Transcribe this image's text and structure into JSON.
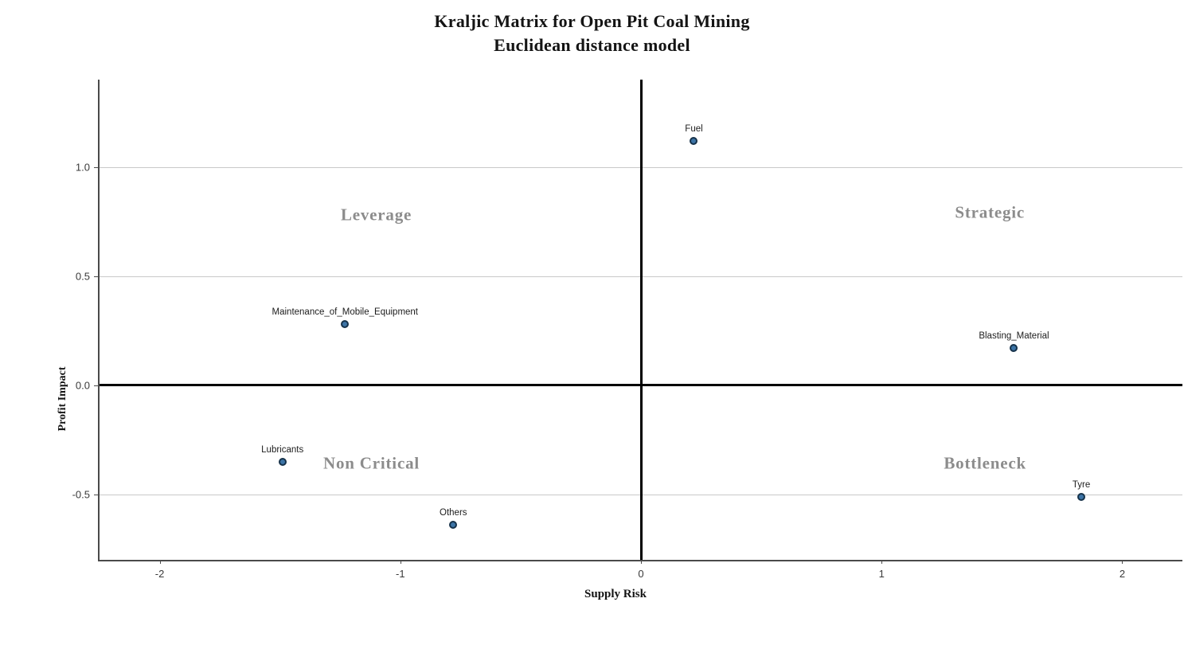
{
  "chart_data": {
    "type": "scatter",
    "title": "Kraljic Matrix for Open Pit Coal Mining",
    "subtitle": "Euclidean distance model",
    "xlabel": "Supply Risk",
    "ylabel": "Profit Impact",
    "xlim": [
      -2.25,
      2.25
    ],
    "ylim": [
      -0.8,
      1.4
    ],
    "x_ticks": [
      {
        "value": -2,
        "label": "-2"
      },
      {
        "value": -1,
        "label": "-1"
      },
      {
        "value": 0,
        "label": "0"
      },
      {
        "value": 1,
        "label": "1"
      },
      {
        "value": 2,
        "label": "2"
      }
    ],
    "y_ticks": [
      {
        "value": 1.0,
        "label": "1.0"
      },
      {
        "value": 0.5,
        "label": "0.5"
      },
      {
        "value": 0.0,
        "label": "0.0"
      },
      {
        "value": -0.5,
        "label": "-0.5"
      }
    ],
    "grid": "horizontal",
    "legend": "none",
    "reference_lines": {
      "x": 0,
      "y": 0
    },
    "points": [
      {
        "label": "Fuel",
        "x": 0.22,
        "y": 1.12
      },
      {
        "label": "Maintenance_of_Mobile_Equipment",
        "x": -1.23,
        "y": 0.28
      },
      {
        "label": "Blasting_Material",
        "x": 1.55,
        "y": 0.17
      },
      {
        "label": "Lubricants",
        "x": -1.49,
        "y": -0.35
      },
      {
        "label": "Others",
        "x": -0.78,
        "y": -0.64
      },
      {
        "label": "Tyre",
        "x": 1.83,
        "y": -0.51
      }
    ],
    "quadrant_labels": [
      {
        "label": "Leverage",
        "x": -1.1,
        "y": 0.78
      },
      {
        "label": "Strategic",
        "x": 1.45,
        "y": 0.79
      },
      {
        "label": "Non Critical",
        "x": -1.12,
        "y": -0.36
      },
      {
        "label": "Bottleneck",
        "x": 1.43,
        "y": -0.36
      }
    ],
    "colors": {
      "background": "#ffffff",
      "point_fill": "#3c74a6",
      "point_border": "#16324a",
      "quadrant_label": "#8c8c8c",
      "grid": "#c9c9c9",
      "axis": "#4a4a4a",
      "reference": "#000000",
      "title": "#141414"
    }
  }
}
